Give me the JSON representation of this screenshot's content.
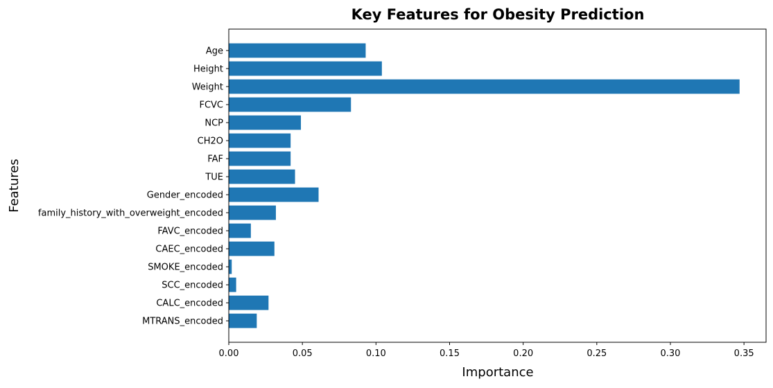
{
  "chart_data": {
    "type": "bar",
    "orientation": "horizontal",
    "title": "Key Features for Obesity Prediction",
    "xlabel": "Importance",
    "ylabel": "Features",
    "xlim": [
      0,
      0.365
    ],
    "xticks": [
      0.0,
      0.05,
      0.1,
      0.15,
      0.2,
      0.25,
      0.3,
      0.35
    ],
    "xtick_labels": [
      "0.00",
      "0.05",
      "0.10",
      "0.15",
      "0.20",
      "0.25",
      "0.30",
      "0.35"
    ],
    "grid": false,
    "legend": "none",
    "bar_color": "#1f77b4",
    "categories": [
      "Age",
      "Height",
      "Weight",
      "FCVC",
      "NCP",
      "CH2O",
      "FAF",
      "TUE",
      "Gender_encoded",
      "family_history_with_overweight_encoded",
      "FAVC_encoded",
      "CAEC_encoded",
      "SMOKE_encoded",
      "SCC_encoded",
      "CALC_encoded",
      "MTRANS_encoded"
    ],
    "values": [
      0.093,
      0.104,
      0.347,
      0.083,
      0.049,
      0.042,
      0.042,
      0.045,
      0.061,
      0.032,
      0.015,
      0.031,
      0.002,
      0.005,
      0.027,
      0.019
    ]
  }
}
